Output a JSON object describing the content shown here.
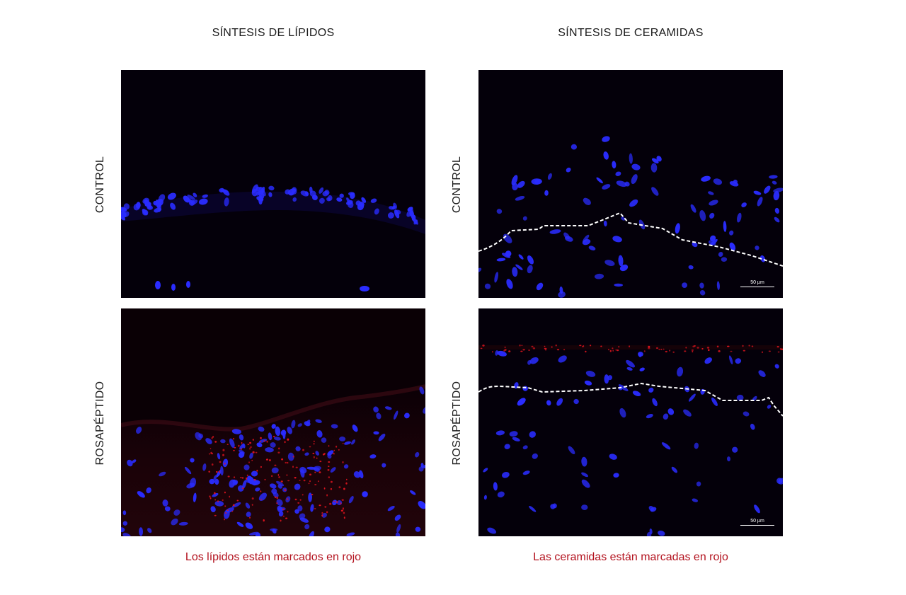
{
  "columns": {
    "lipids": "SÍNTESIS DE LÍPIDOS",
    "ceramides": "SÍNTESIS DE CERAMIDAS"
  },
  "rows": {
    "control": "CONTROL",
    "treatment": "ROSAPÉPTIDO"
  },
  "captions": {
    "lipids": "Los lípidos están marcados en rojo",
    "ceramides": "Las ceramidas están marcadas en rojo"
  },
  "scale_bar": {
    "label": "50 µm"
  },
  "colors": {
    "nuclei_stain": "#2a2cff",
    "marker_stain": "#e0141e",
    "caption_text": "#b3121e",
    "boundary_line": "#ffffff"
  }
}
